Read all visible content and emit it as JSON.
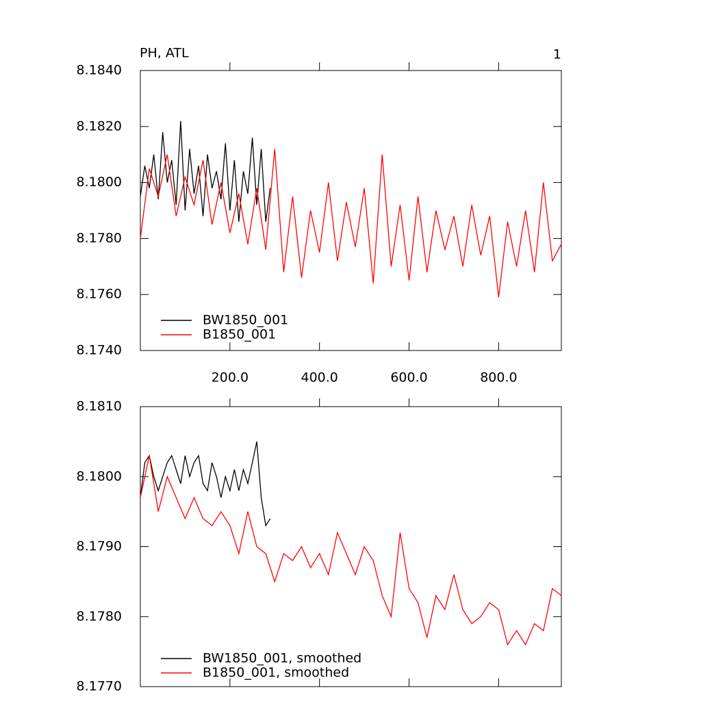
{
  "chart_data": [
    {
      "type": "line",
      "title": "PH, ATL",
      "annotation": "1",
      "xlim": [
        0,
        940
      ],
      "ylim": [
        8.174,
        8.184
      ],
      "xticks": [
        {
          "value": 200,
          "label": "200.0"
        },
        {
          "value": 400,
          "label": "400.0"
        },
        {
          "value": 600,
          "label": "600.0"
        },
        {
          "value": 800,
          "label": "800.0"
        }
      ],
      "yticks": [
        {
          "value": 8.174,
          "label": "8.1740"
        },
        {
          "value": 8.176,
          "label": "8.1760"
        },
        {
          "value": 8.178,
          "label": "8.1780"
        },
        {
          "value": 8.18,
          "label": "8.1800"
        },
        {
          "value": 8.182,
          "label": "8.1820"
        },
        {
          "value": 8.184,
          "label": "8.1840"
        }
      ],
      "series": [
        {
          "name": "BW1850_001",
          "color": "#000000",
          "x": [
            0,
            10,
            20,
            30,
            40,
            50,
            60,
            70,
            80,
            90,
            100,
            110,
            120,
            130,
            140,
            150,
            160,
            170,
            180,
            190,
            200,
            210,
            220,
            230,
            240,
            250,
            260,
            270,
            280,
            290
          ],
          "values": [
            8.1795,
            8.1806,
            8.1798,
            8.181,
            8.1794,
            8.1818,
            8.18,
            8.1808,
            8.1792,
            8.1822,
            8.179,
            8.1812,
            8.1796,
            8.1806,
            8.1788,
            8.181,
            8.1798,
            8.1804,
            8.1794,
            8.1814,
            8.179,
            8.1808,
            8.1786,
            8.1804,
            8.1796,
            8.1816,
            8.1792,
            8.1812,
            8.1786,
            8.1798
          ]
        },
        {
          "name": "B1850_001",
          "color": "#ff0000",
          "x": [
            0,
            20,
            40,
            60,
            80,
            100,
            120,
            140,
            160,
            180,
            200,
            220,
            240,
            260,
            280,
            300,
            320,
            340,
            360,
            380,
            400,
            420,
            440,
            460,
            480,
            500,
            520,
            540,
            560,
            580,
            600,
            620,
            640,
            660,
            680,
            700,
            720,
            740,
            760,
            780,
            800,
            820,
            840,
            860,
            880,
            900,
            920,
            940
          ],
          "values": [
            8.178,
            8.1805,
            8.1795,
            8.181,
            8.1788,
            8.1802,
            8.1792,
            8.1808,
            8.1785,
            8.18,
            8.1782,
            8.1796,
            8.1778,
            8.1798,
            8.1776,
            8.1812,
            8.1768,
            8.1795,
            8.1766,
            8.179,
            8.1775,
            8.18,
            8.1772,
            8.1793,
            8.1777,
            8.1798,
            8.1764,
            8.181,
            8.177,
            8.1792,
            8.1765,
            8.1795,
            8.1768,
            8.179,
            8.1776,
            8.1788,
            8.177,
            8.1792,
            8.1774,
            8.1788,
            8.1759,
            8.1786,
            8.177,
            8.179,
            8.1768,
            8.18,
            8.1772,
            8.1778
          ]
        }
      ]
    },
    {
      "type": "line",
      "xlim": [
        0,
        940
      ],
      "ylim": [
        8.177,
        8.181
      ],
      "xticks": [
        200,
        400,
        600,
        800
      ],
      "yticks": [
        {
          "value": 8.177,
          "label": "8.1770"
        },
        {
          "value": 8.178,
          "label": "8.1780"
        },
        {
          "value": 8.179,
          "label": "8.1790"
        },
        {
          "value": 8.18,
          "label": "8.1800"
        },
        {
          "value": 8.181,
          "label": "8.1810"
        }
      ],
      "series": [
        {
          "name": "BW1850_001, smoothed",
          "color": "#000000",
          "x": [
            0,
            10,
            20,
            30,
            40,
            50,
            60,
            70,
            80,
            90,
            100,
            110,
            120,
            130,
            140,
            150,
            160,
            170,
            180,
            190,
            200,
            210,
            220,
            230,
            240,
            250,
            260,
            270,
            280,
            290
          ],
          "values": [
            8.1797,
            8.1802,
            8.1803,
            8.18,
            8.1798,
            8.18,
            8.1802,
            8.1803,
            8.1801,
            8.1799,
            8.1803,
            8.18,
            8.1802,
            8.1803,
            8.1799,
            8.1798,
            8.1802,
            8.18,
            8.1797,
            8.18,
            8.1798,
            8.1801,
            8.1798,
            8.1801,
            8.1799,
            8.1802,
            8.1805,
            8.1797,
            8.1793,
            8.1794
          ]
        },
        {
          "name": "B1850_001, smoothed",
          "color": "#ff0000",
          "x": [
            0,
            20,
            40,
            60,
            80,
            100,
            120,
            140,
            160,
            180,
            200,
            220,
            240,
            260,
            280,
            300,
            320,
            340,
            360,
            380,
            400,
            420,
            440,
            460,
            480,
            500,
            520,
            540,
            560,
            580,
            600,
            620,
            640,
            660,
            680,
            700,
            720,
            740,
            760,
            780,
            800,
            820,
            840,
            860,
            880,
            900,
            920,
            940
          ],
          "values": [
            8.1797,
            8.1803,
            8.1795,
            8.18,
            8.1797,
            8.1794,
            8.1797,
            8.1794,
            8.1793,
            8.1795,
            8.1793,
            8.1789,
            8.1795,
            8.179,
            8.1789,
            8.1785,
            8.1789,
            8.1788,
            8.179,
            8.1787,
            8.1789,
            8.1786,
            8.1792,
            8.1789,
            8.1786,
            8.179,
            8.1788,
            8.1783,
            8.178,
            8.1792,
            8.1784,
            8.1782,
            8.1777,
            8.1783,
            8.1781,
            8.1786,
            8.1781,
            8.1779,
            8.178,
            8.1782,
            8.1781,
            8.1776,
            8.1778,
            8.1776,
            8.1779,
            8.1778,
            8.1784,
            8.1783
          ]
        }
      ]
    }
  ]
}
